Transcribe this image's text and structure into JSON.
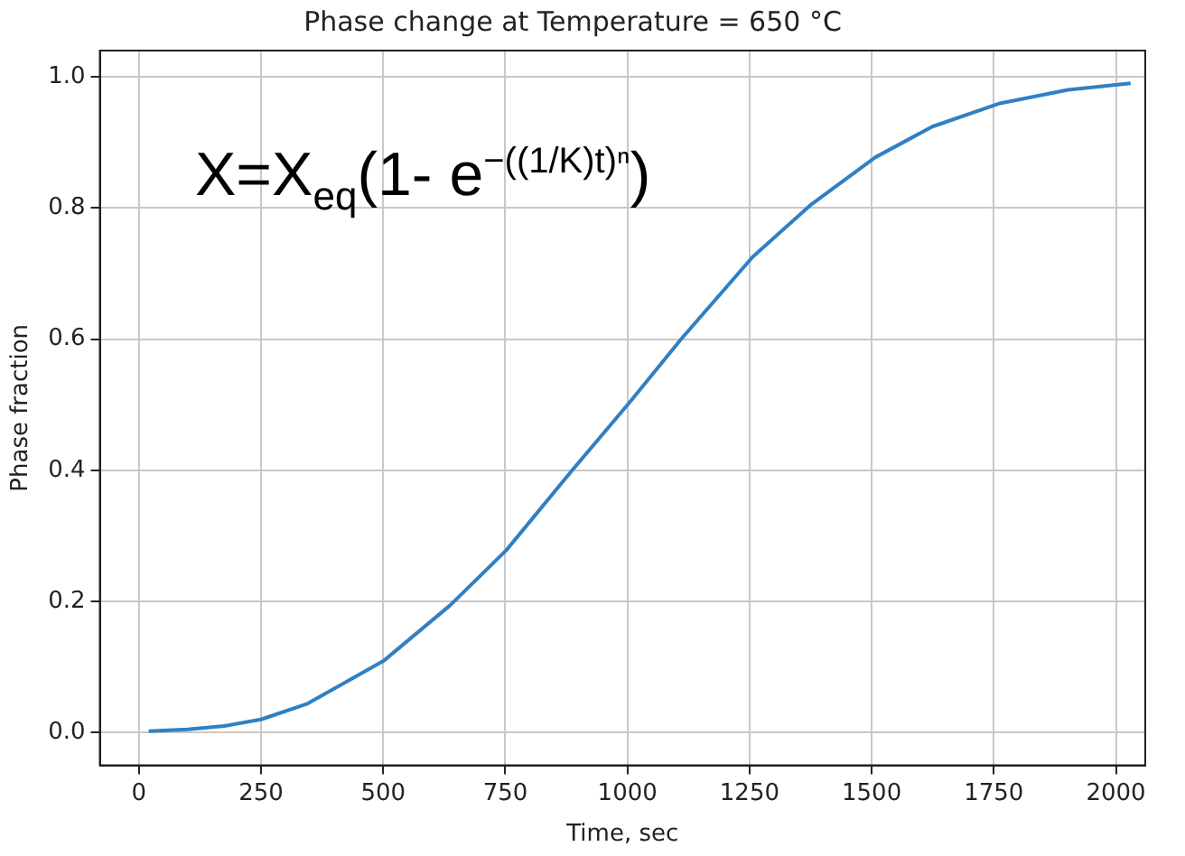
{
  "chart_data": {
    "type": "line",
    "title": "Phase change at Temperature = 650 °C",
    "xlabel": "Time, sec",
    "ylabel": "Phase fraction",
    "annotations": [
      "X=X$_{eq}$(1- e$^{−((1/K)t)ⁿ}$)"
    ],
    "x": [
      20,
      100,
      175,
      250,
      345,
      502,
      637,
      752,
      887,
      1005,
      1110,
      1256,
      1374,
      1507,
      1624,
      1760,
      1902,
      2030
    ],
    "series": [
      {
        "color": "#2f80c4",
        "values": [
          0.002,
          0.005,
          0.01,
          0.02,
          0.044,
          0.11,
          0.194,
          0.278,
          0.4,
          0.504,
          0.6,
          0.725,
          0.804,
          0.877,
          0.924,
          0.959,
          0.98,
          0.99
        ]
      }
    ],
    "xlim": [
      -80,
      2060
    ],
    "xticks": [
      0,
      250,
      500,
      750,
      1000,
      1250,
      1500,
      1750,
      2000
    ],
    "ylim": [
      -0.05,
      1.04
    ],
    "yticks": [
      {
        "value": 0,
        "label": "0.0"
      },
      {
        "value": 0.2,
        "label": "0.2"
      },
      {
        "value": 0.4,
        "label": "0.4"
      },
      {
        "value": 0.6,
        "label": "0.6"
      },
      {
        "value": 0.8,
        "label": "0.8"
      },
      {
        "value": 1,
        "label": "1.0"
      }
    ],
    "grid": true,
    "legend": false,
    "marker": "none",
    "line_style": "solid"
  }
}
